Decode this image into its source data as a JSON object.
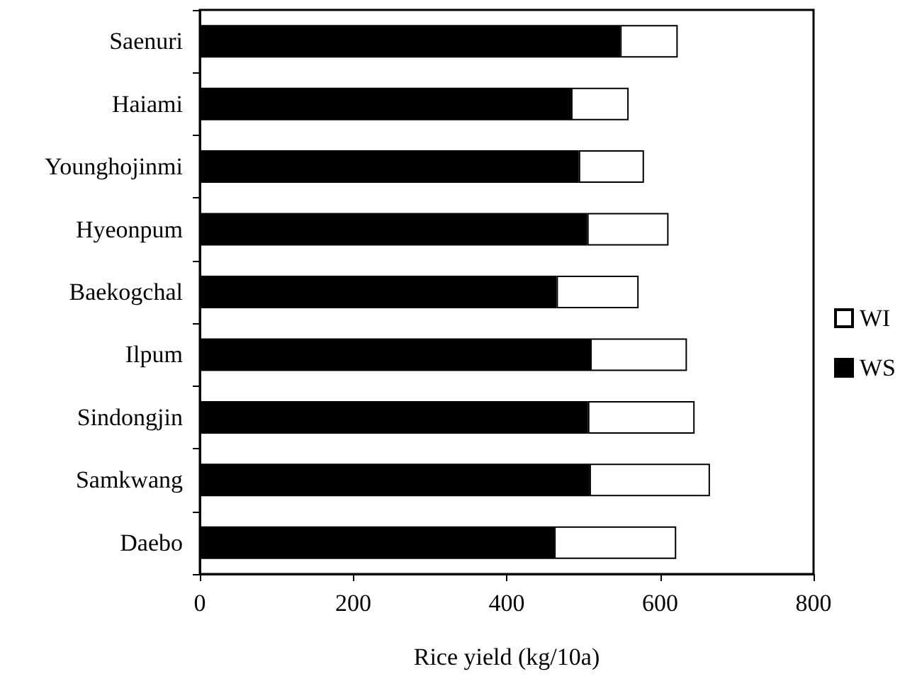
{
  "chart_data": {
    "type": "bar",
    "orientation": "horizontal",
    "stacked": true,
    "xlabel": "Rice yield (kg/10a)",
    "categories": [
      "Saenuri",
      "Haiami",
      "Younghojinmi",
      "Hyeonpum",
      "Baekogchal",
      "Ilpum",
      "Sindongjin",
      "Samkwang",
      "Daebo"
    ],
    "series": [
      {
        "name": "WS",
        "color": "#000000",
        "values": [
          548,
          484,
          494,
          505,
          465,
          509,
          506,
          508,
          462
        ]
      },
      {
        "name": "WI",
        "color": "#ffffff",
        "values": [
          75,
          75,
          85,
          106,
          107,
          126,
          139,
          157,
          159
        ]
      }
    ],
    "xlim": [
      0,
      800
    ],
    "xticks": [
      0,
      200,
      400,
      600,
      800
    ],
    "grid": false,
    "legend": "right"
  }
}
